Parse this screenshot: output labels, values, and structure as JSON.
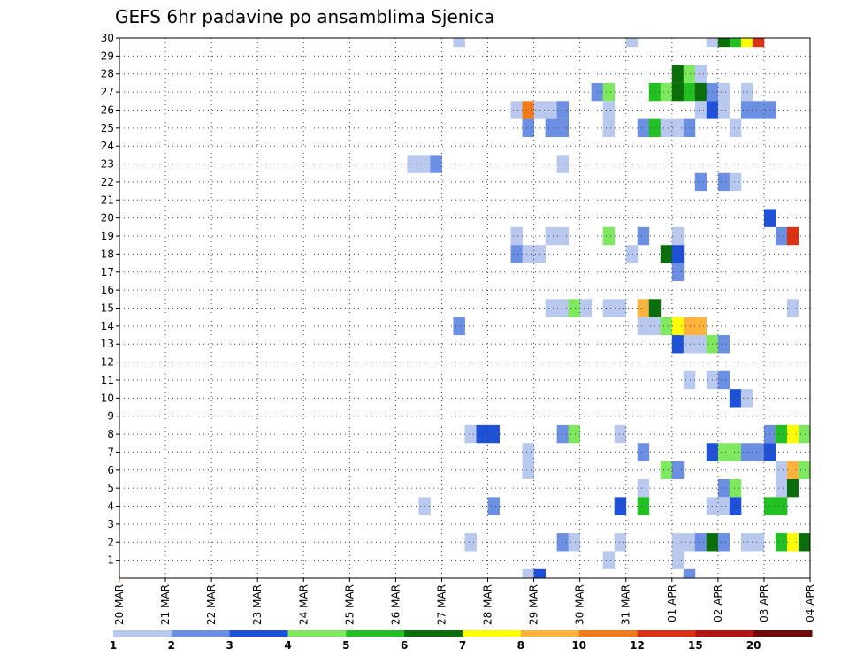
{
  "chart_data": {
    "type": "heatmap",
    "title": "GEFS 6hr padavine po ansamblima Sjenica",
    "x_tick_labels": [
      "20 MAR",
      "21 MAR",
      "22 MAR",
      "23 MAR",
      "24 MAR",
      "25 MAR",
      "26 MAR",
      "27 MAR",
      "28 MAR",
      "29 MAR",
      "30 MAR",
      "31 MAR",
      "01 APR",
      "02 APR",
      "03 APR",
      "04 APR"
    ],
    "y_tick_labels": [
      "1",
      "2",
      "3",
      "4",
      "5",
      "6",
      "7",
      "8",
      "9",
      "10",
      "11",
      "12",
      "13",
      "14",
      "15",
      "16",
      "17",
      "18",
      "19",
      "20",
      "21",
      "22",
      "23",
      "24",
      "25",
      "26",
      "27",
      "28",
      "29",
      "30"
    ],
    "xlim": [
      0,
      15
    ],
    "ylim": [
      0,
      30
    ],
    "grid": true,
    "legend": {
      "placement": "bottom",
      "labels": [
        "1",
        "2",
        "3",
        "4",
        "5",
        "6",
        "7",
        "8",
        "10",
        "12",
        "15",
        "20"
      ],
      "colors": [
        "#b8c8ee",
        "#6b8fe2",
        "#1e50d8",
        "#7ee85e",
        "#22c022",
        "#0a6e0a",
        "#ffff00",
        "#ffb23c",
        "#f27a1a",
        "#dc3214",
        "#b41414",
        "#6e0a0a"
      ]
    },
    "cells": [
      {
        "x": 7.25,
        "y": 30,
        "level": 0
      },
      {
        "x": 11.0,
        "y": 30,
        "level": 0
      },
      {
        "x": 12.75,
        "y": 30,
        "level": 0
      },
      {
        "x": 13.0,
        "y": 30,
        "level": 5
      },
      {
        "x": 13.25,
        "y": 30,
        "level": 4
      },
      {
        "x": 13.5,
        "y": 30,
        "level": 6
      },
      {
        "x": 13.75,
        "y": 30,
        "level": 9
      },
      {
        "x": 12.0,
        "y": 28,
        "level": 5
      },
      {
        "x": 12.25,
        "y": 28,
        "level": 3
      },
      {
        "x": 12.5,
        "y": 28,
        "level": 0
      },
      {
        "x": 10.25,
        "y": 27,
        "level": 1
      },
      {
        "x": 10.5,
        "y": 27,
        "level": 3
      },
      {
        "x": 11.5,
        "y": 27,
        "level": 4
      },
      {
        "x": 11.75,
        "y": 27,
        "level": 3
      },
      {
        "x": 12.0,
        "y": 27,
        "level": 5
      },
      {
        "x": 12.25,
        "y": 27,
        "level": 4
      },
      {
        "x": 12.5,
        "y": 27,
        "level": 5
      },
      {
        "x": 12.75,
        "y": 27,
        "level": 1
      },
      {
        "x": 13.0,
        "y": 27,
        "level": 0
      },
      {
        "x": 13.5,
        "y": 27,
        "level": 0
      },
      {
        "x": 8.5,
        "y": 26,
        "level": 0
      },
      {
        "x": 8.75,
        "y": 26,
        "level": 8
      },
      {
        "x": 9.0,
        "y": 26,
        "level": 0
      },
      {
        "x": 9.25,
        "y": 26,
        "level": 0
      },
      {
        "x": 9.5,
        "y": 26,
        "level": 1
      },
      {
        "x": 10.5,
        "y": 26,
        "level": 0
      },
      {
        "x": 12.5,
        "y": 26,
        "level": 0
      },
      {
        "x": 12.75,
        "y": 26,
        "level": 2
      },
      {
        "x": 13.0,
        "y": 26,
        "level": 0
      },
      {
        "x": 13.5,
        "y": 26,
        "level": 1
      },
      {
        "x": 13.75,
        "y": 26,
        "level": 1
      },
      {
        "x": 14.0,
        "y": 26,
        "level": 1
      },
      {
        "x": 8.75,
        "y": 25,
        "level": 1
      },
      {
        "x": 9.25,
        "y": 25,
        "level": 1
      },
      {
        "x": 9.5,
        "y": 25,
        "level": 1
      },
      {
        "x": 10.5,
        "y": 25,
        "level": 0
      },
      {
        "x": 11.25,
        "y": 25,
        "level": 1
      },
      {
        "x": 11.5,
        "y": 25,
        "level": 4
      },
      {
        "x": 11.75,
        "y": 25,
        "level": 0
      },
      {
        "x": 12.0,
        "y": 25,
        "level": 0
      },
      {
        "x": 12.25,
        "y": 25,
        "level": 1
      },
      {
        "x": 13.25,
        "y": 25,
        "level": 0
      },
      {
        "x": 6.25,
        "y": 23,
        "level": 0
      },
      {
        "x": 6.5,
        "y": 23,
        "level": 0
      },
      {
        "x": 6.75,
        "y": 23,
        "level": 1
      },
      {
        "x": 9.5,
        "y": 23,
        "level": 0
      },
      {
        "x": 12.5,
        "y": 22,
        "level": 1
      },
      {
        "x": 13.0,
        "y": 22,
        "level": 1
      },
      {
        "x": 13.25,
        "y": 22,
        "level": 0
      },
      {
        "x": 14.0,
        "y": 20,
        "level": 2
      },
      {
        "x": 8.5,
        "y": 19,
        "level": 0
      },
      {
        "x": 9.25,
        "y": 19,
        "level": 0
      },
      {
        "x": 9.5,
        "y": 19,
        "level": 0
      },
      {
        "x": 10.5,
        "y": 19,
        "level": 3
      },
      {
        "x": 11.25,
        "y": 19,
        "level": 1
      },
      {
        "x": 12.0,
        "y": 19,
        "level": 0
      },
      {
        "x": 14.25,
        "y": 19,
        "level": 1
      },
      {
        "x": 14.5,
        "y": 19,
        "level": 9
      },
      {
        "x": 8.5,
        "y": 18,
        "level": 1
      },
      {
        "x": 8.75,
        "y": 18,
        "level": 0
      },
      {
        "x": 9.0,
        "y": 18,
        "level": 0
      },
      {
        "x": 11.0,
        "y": 18,
        "level": 0
      },
      {
        "x": 11.75,
        "y": 18,
        "level": 5
      },
      {
        "x": 12.0,
        "y": 18,
        "level": 2
      },
      {
        "x": 12.0,
        "y": 17,
        "level": 1
      },
      {
        "x": 9.25,
        "y": 15,
        "level": 0
      },
      {
        "x": 9.5,
        "y": 15,
        "level": 0
      },
      {
        "x": 9.75,
        "y": 15,
        "level": 3
      },
      {
        "x": 10.0,
        "y": 15,
        "level": 0
      },
      {
        "x": 10.5,
        "y": 15,
        "level": 0
      },
      {
        "x": 10.75,
        "y": 15,
        "level": 0
      },
      {
        "x": 11.25,
        "y": 15,
        "level": 7
      },
      {
        "x": 11.5,
        "y": 15,
        "level": 5
      },
      {
        "x": 14.5,
        "y": 15,
        "level": 0
      },
      {
        "x": 7.25,
        "y": 14,
        "level": 1
      },
      {
        "x": 11.25,
        "y": 14,
        "level": 0
      },
      {
        "x": 11.5,
        "y": 14,
        "level": 0
      },
      {
        "x": 11.75,
        "y": 14,
        "level": 3
      },
      {
        "x": 12.0,
        "y": 14,
        "level": 6
      },
      {
        "x": 12.25,
        "y": 14,
        "level": 7
      },
      {
        "x": 12.5,
        "y": 14,
        "level": 7
      },
      {
        "x": 12.0,
        "y": 13,
        "level": 2
      },
      {
        "x": 12.25,
        "y": 13,
        "level": 0
      },
      {
        "x": 12.5,
        "y": 13,
        "level": 0
      },
      {
        "x": 12.75,
        "y": 13,
        "level": 3
      },
      {
        "x": 13.0,
        "y": 13,
        "level": 1
      },
      {
        "x": 12.25,
        "y": 11,
        "level": 0
      },
      {
        "x": 12.75,
        "y": 11,
        "level": 0
      },
      {
        "x": 13.0,
        "y": 11,
        "level": 1
      },
      {
        "x": 13.25,
        "y": 10,
        "level": 2
      },
      {
        "x": 13.5,
        "y": 10,
        "level": 0
      },
      {
        "x": 7.5,
        "y": 8,
        "level": 0
      },
      {
        "x": 7.75,
        "y": 8,
        "level": 2
      },
      {
        "x": 8.0,
        "y": 8,
        "level": 2
      },
      {
        "x": 9.5,
        "y": 8,
        "level": 1
      },
      {
        "x": 9.75,
        "y": 8,
        "level": 3
      },
      {
        "x": 10.75,
        "y": 8,
        "level": 0
      },
      {
        "x": 14.0,
        "y": 8,
        "level": 1
      },
      {
        "x": 14.25,
        "y": 8,
        "level": 4
      },
      {
        "x": 14.5,
        "y": 8,
        "level": 6
      },
      {
        "x": 14.75,
        "y": 8,
        "level": 3
      },
      {
        "x": 8.75,
        "y": 7,
        "level": 0
      },
      {
        "x": 11.25,
        "y": 7,
        "level": 1
      },
      {
        "x": 12.75,
        "y": 7,
        "level": 2
      },
      {
        "x": 13.0,
        "y": 7,
        "level": 3
      },
      {
        "x": 13.25,
        "y": 7,
        "level": 3
      },
      {
        "x": 13.5,
        "y": 7,
        "level": 1
      },
      {
        "x": 13.75,
        "y": 7,
        "level": 1
      },
      {
        "x": 14.0,
        "y": 7,
        "level": 2
      },
      {
        "x": 8.75,
        "y": 6,
        "level": 0
      },
      {
        "x": 11.75,
        "y": 6,
        "level": 3
      },
      {
        "x": 12.0,
        "y": 6,
        "level": 1
      },
      {
        "x": 14.25,
        "y": 6,
        "level": 0
      },
      {
        "x": 14.5,
        "y": 6,
        "level": 7
      },
      {
        "x": 14.75,
        "y": 6,
        "level": 3
      },
      {
        "x": 11.25,
        "y": 5,
        "level": 0
      },
      {
        "x": 13.0,
        "y": 5,
        "level": 1
      },
      {
        "x": 13.25,
        "y": 5,
        "level": 3
      },
      {
        "x": 14.25,
        "y": 5,
        "level": 0
      },
      {
        "x": 14.5,
        "y": 5,
        "level": 5
      },
      {
        "x": 6.5,
        "y": 4,
        "level": 0
      },
      {
        "x": 8.0,
        "y": 4,
        "level": 1
      },
      {
        "x": 10.75,
        "y": 4,
        "level": 2
      },
      {
        "x": 11.25,
        "y": 4,
        "level": 4
      },
      {
        "x": 12.75,
        "y": 4,
        "level": 0
      },
      {
        "x": 13.0,
        "y": 4,
        "level": 0
      },
      {
        "x": 13.25,
        "y": 4,
        "level": 2
      },
      {
        "x": 14.0,
        "y": 4,
        "level": 4
      },
      {
        "x": 14.25,
        "y": 4,
        "level": 4
      },
      {
        "x": 7.5,
        "y": 2,
        "level": 0
      },
      {
        "x": 9.5,
        "y": 2,
        "level": 1
      },
      {
        "x": 9.75,
        "y": 2,
        "level": 0
      },
      {
        "x": 10.75,
        "y": 2,
        "level": 0
      },
      {
        "x": 12.0,
        "y": 2,
        "level": 0
      },
      {
        "x": 12.25,
        "y": 2,
        "level": 0
      },
      {
        "x": 12.5,
        "y": 2,
        "level": 1
      },
      {
        "x": 12.75,
        "y": 2,
        "level": 5
      },
      {
        "x": 13.0,
        "y": 2,
        "level": 1
      },
      {
        "x": 13.5,
        "y": 2,
        "level": 0
      },
      {
        "x": 13.75,
        "y": 2,
        "level": 0
      },
      {
        "x": 14.25,
        "y": 2,
        "level": 4
      },
      {
        "x": 14.5,
        "y": 2,
        "level": 6
      },
      {
        "x": 14.75,
        "y": 2,
        "level": 5
      },
      {
        "x": 10.5,
        "y": 1,
        "level": 0
      },
      {
        "x": 12.0,
        "y": 1,
        "level": 0
      },
      {
        "x": 8.75,
        "y": 0,
        "level": 0
      },
      {
        "x": 9.0,
        "y": 0,
        "level": 2
      },
      {
        "x": 12.25,
        "y": 0,
        "level": 1
      }
    ]
  }
}
